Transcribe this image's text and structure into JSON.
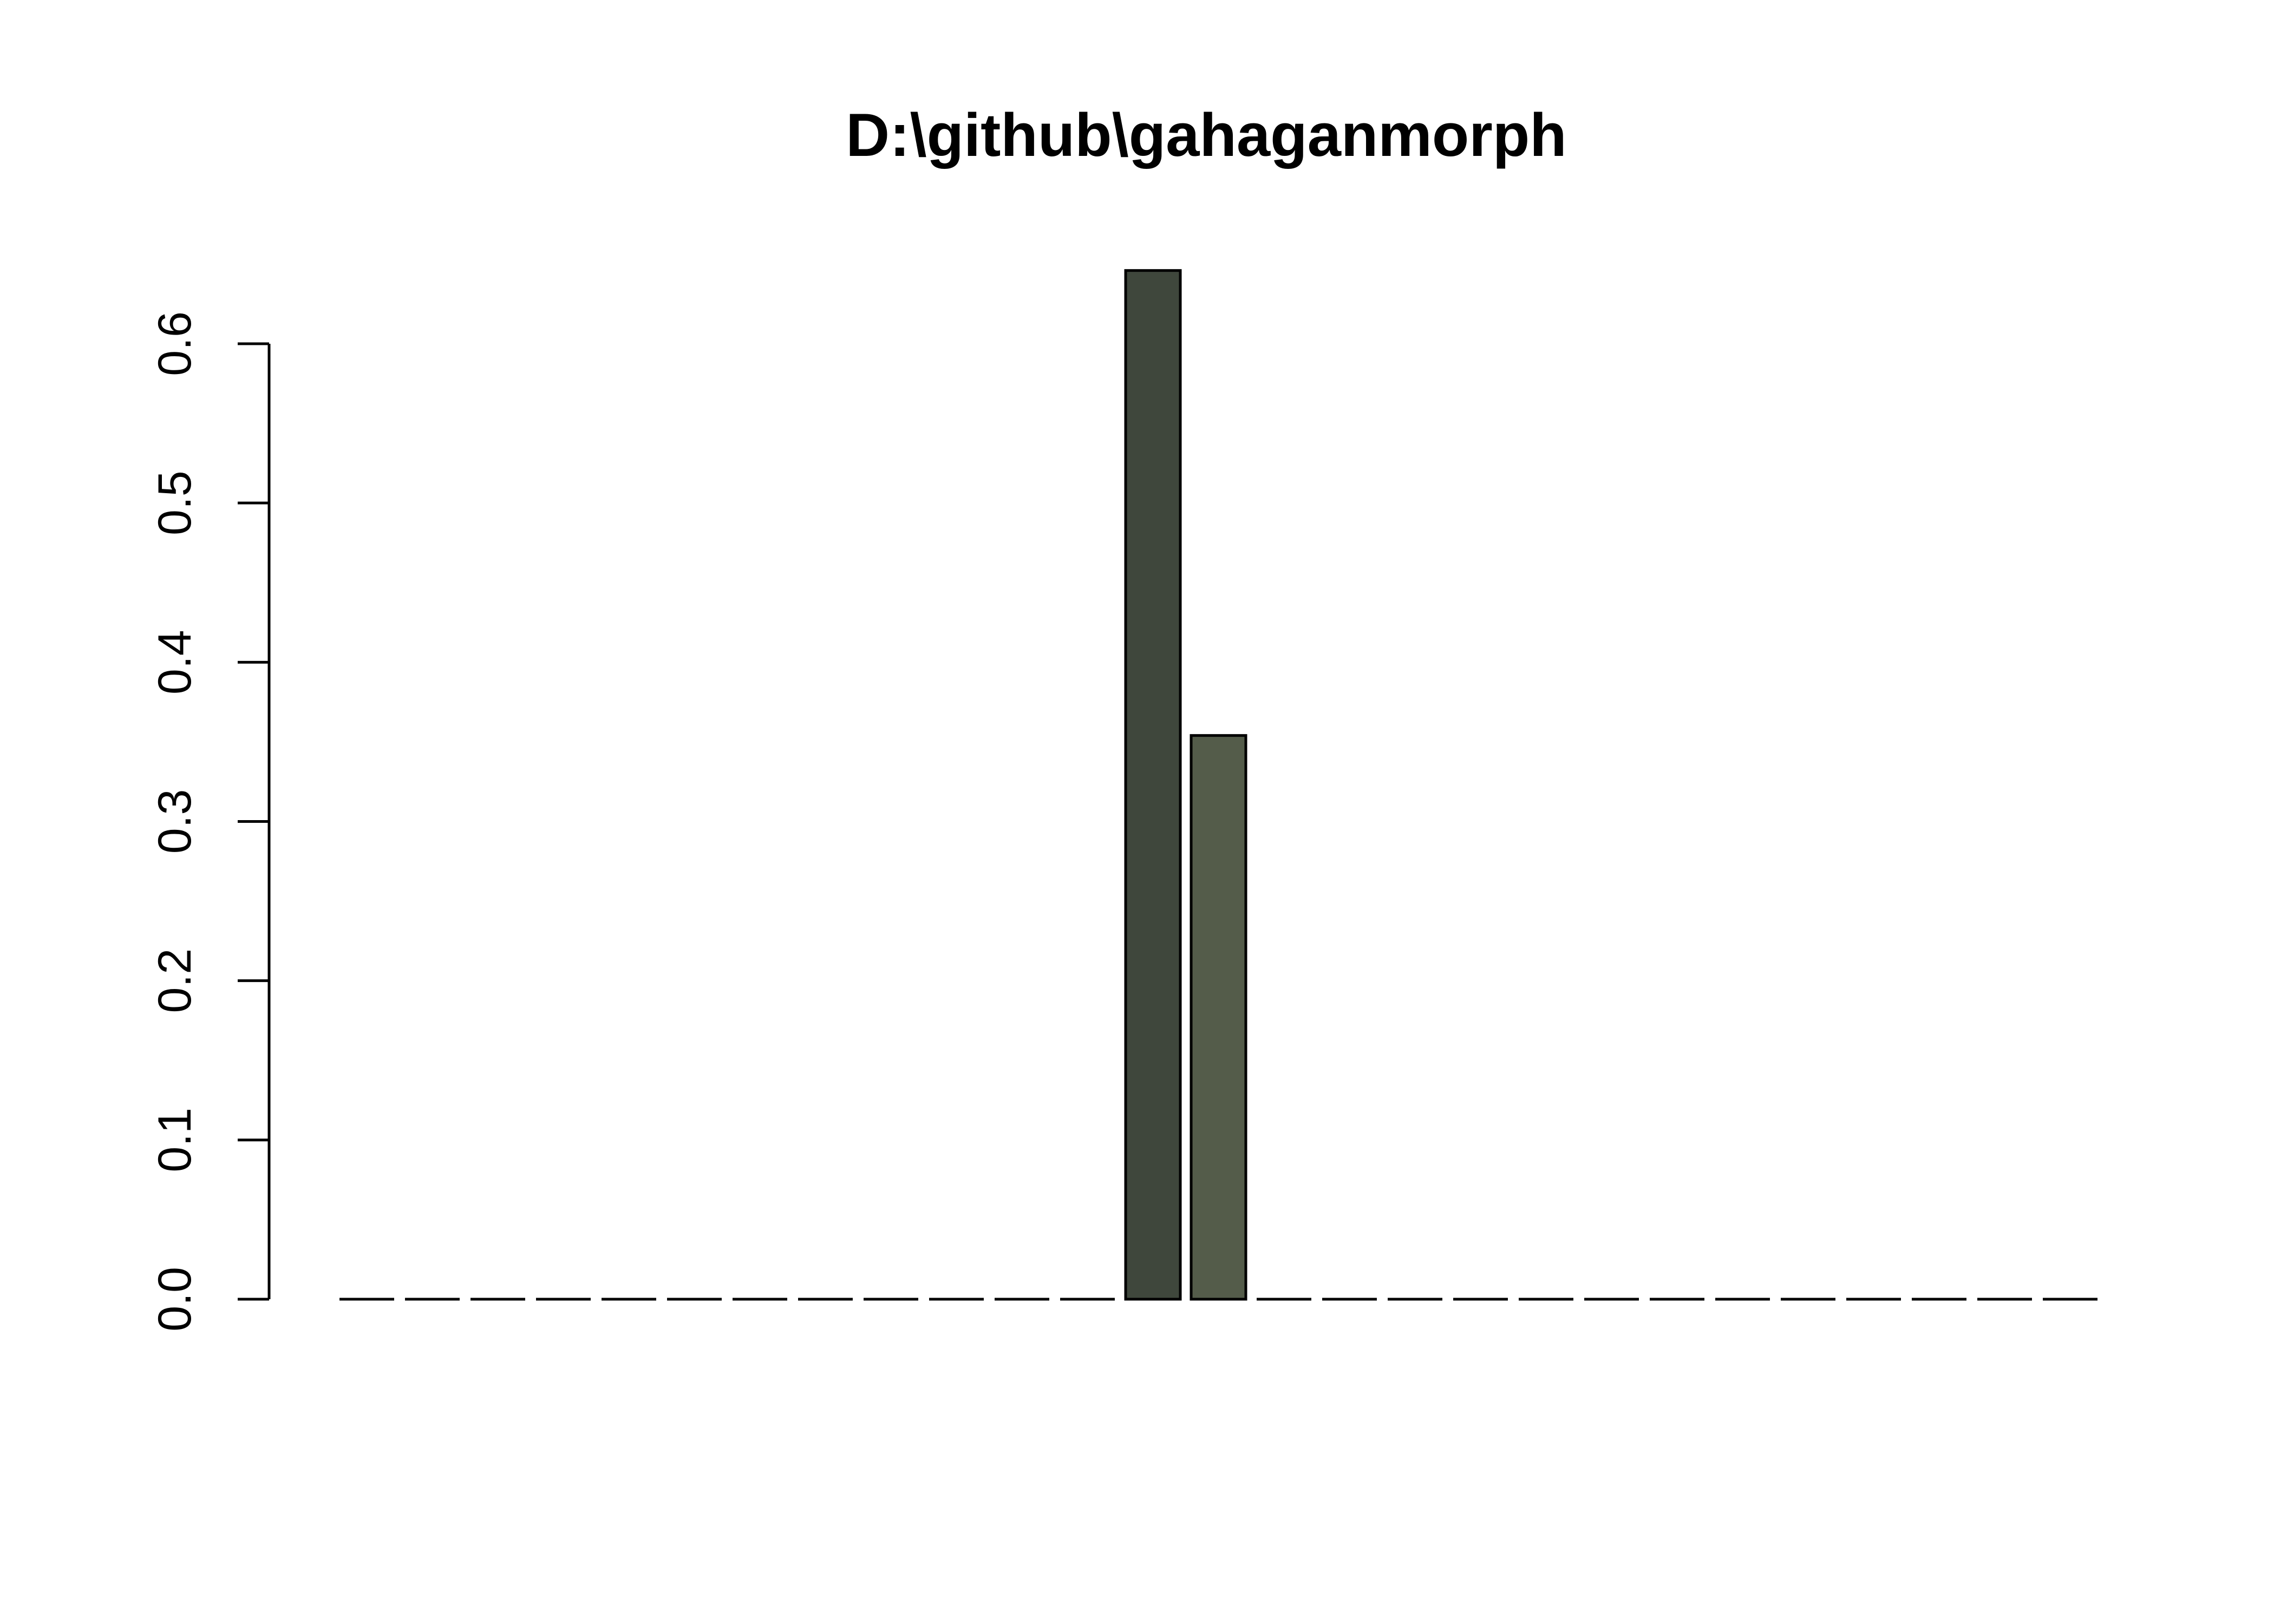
{
  "chart_data": {
    "type": "bar",
    "title": "D:\\github\\gahaganmorph",
    "xlabel": "",
    "ylabel": "",
    "ylim": [
      0,
      0.6
    ],
    "y_ticks": [
      "0.0",
      "0.1",
      "0.2",
      "0.3",
      "0.4",
      "0.5",
      "0.6"
    ],
    "bar_count": 27,
    "values": [
      0,
      0,
      0,
      0,
      0,
      0,
      0,
      0,
      0,
      0,
      0,
      0,
      0.646,
      0.354,
      0,
      0,
      0,
      0,
      0,
      0,
      0,
      0,
      0,
      0,
      0,
      0,
      0
    ],
    "colors": {
      "bar_13": "#3f473c",
      "bar_14": "#545c4a",
      "default": "#545c4a"
    },
    "grid": false,
    "legend": "none"
  }
}
